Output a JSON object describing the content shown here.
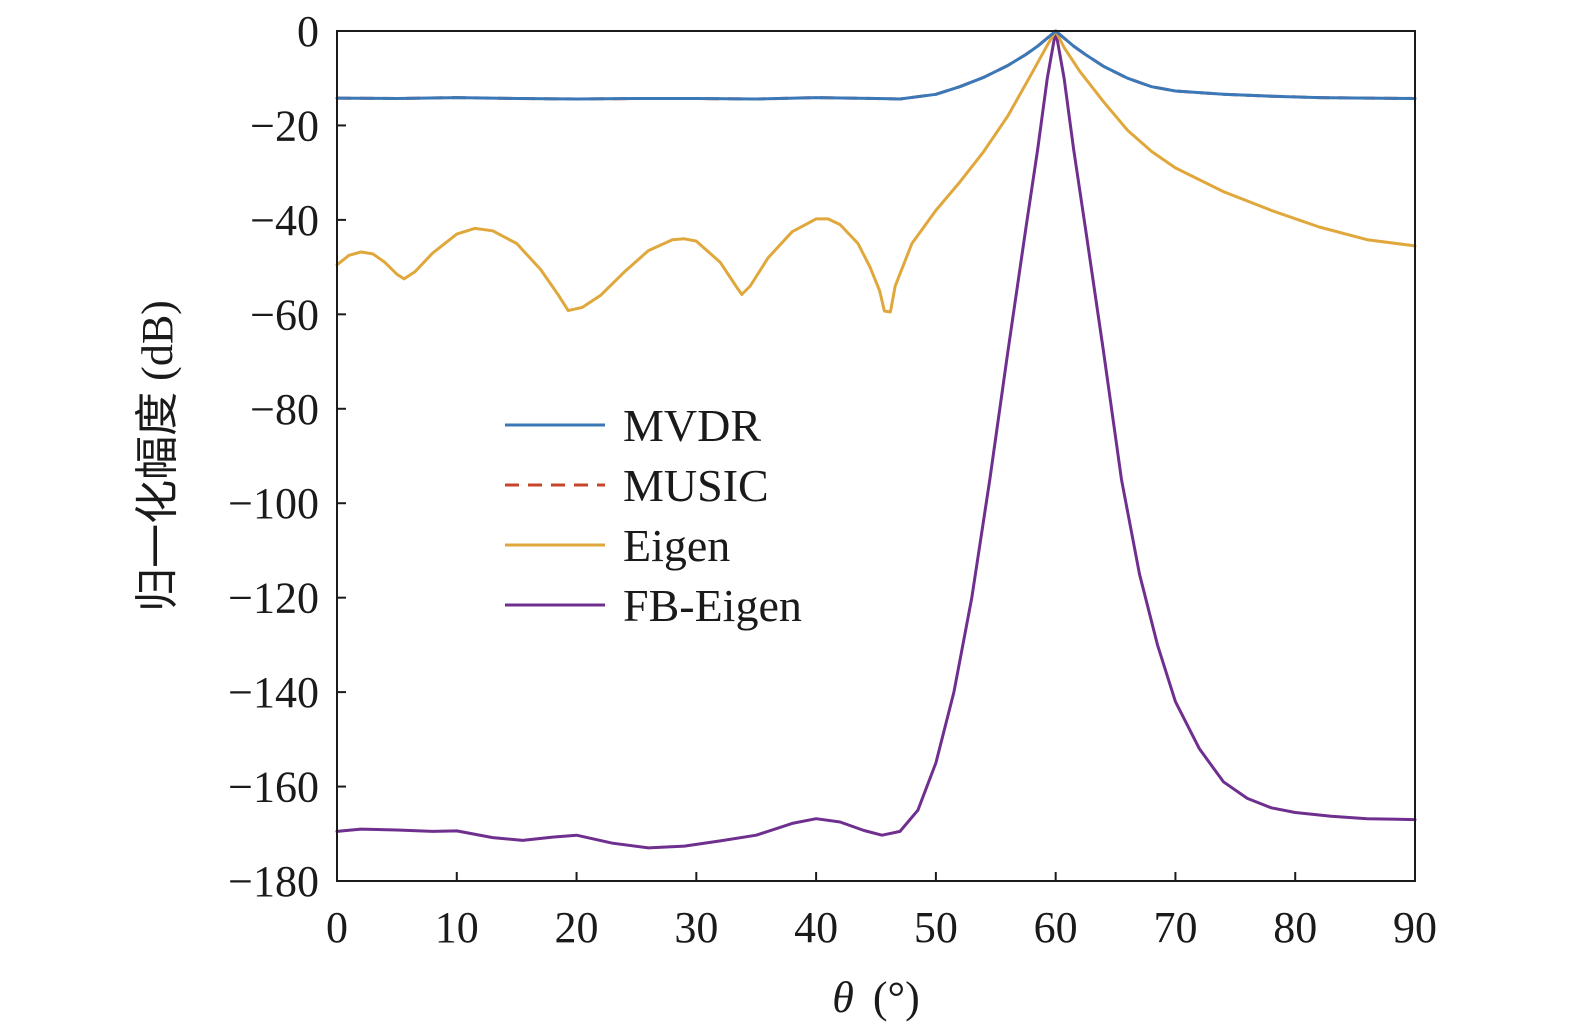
{
  "chart_data": {
    "type": "line",
    "title": "",
    "xlabel_symbol": "θ",
    "xlabel_unit": "(°)",
    "ylabel": "归一化幅度 (dB)",
    "xlim": [
      0,
      90
    ],
    "ylim": [
      -180,
      0
    ],
    "xticks": [
      "0",
      "10",
      "20",
      "30",
      "40",
      "50",
      "60",
      "70",
      "80",
      "90"
    ],
    "yticks": [
      "0",
      "−20",
      "−40",
      "−60",
      "−80",
      "−100",
      "−120",
      "−140",
      "−160",
      "−180"
    ],
    "grid": false,
    "legend_position": "center-left",
    "series": [
      {
        "name": "MVDR",
        "color": "#3b78b8",
        "style": "solid",
        "points": [
          [
            0,
            -14.2
          ],
          [
            5,
            -14.3
          ],
          [
            10,
            -14.1
          ],
          [
            15,
            -14.3
          ],
          [
            20,
            -14.4
          ],
          [
            25,
            -14.3
          ],
          [
            30,
            -14.3
          ],
          [
            35,
            -14.4
          ],
          [
            40,
            -14.1
          ],
          [
            45,
            -14.3
          ],
          [
            47,
            -14.4
          ],
          [
            50,
            -13.4
          ],
          [
            52,
            -11.8
          ],
          [
            54,
            -9.8
          ],
          [
            56,
            -7.3
          ],
          [
            57.5,
            -5.0
          ],
          [
            58.5,
            -3.2
          ],
          [
            59.3,
            -1.5
          ],
          [
            60,
            0
          ],
          [
            60.7,
            -1.5
          ],
          [
            61.5,
            -3.2
          ],
          [
            62.5,
            -5.0
          ],
          [
            64,
            -7.5
          ],
          [
            66,
            -10.0
          ],
          [
            68,
            -11.8
          ],
          [
            70,
            -12.7
          ],
          [
            74,
            -13.4
          ],
          [
            78,
            -13.8
          ],
          [
            82,
            -14.1
          ],
          [
            86,
            -14.2
          ],
          [
            90,
            -14.3
          ]
        ]
      },
      {
        "name": "MUSIC",
        "color": "#c5462a",
        "style": "dashed",
        "points": [
          [
            0,
            -14.2
          ],
          [
            5,
            -14.3
          ],
          [
            10,
            -14.1
          ],
          [
            15,
            -14.3
          ],
          [
            20,
            -14.4
          ],
          [
            25,
            -14.3
          ],
          [
            30,
            -14.3
          ],
          [
            35,
            -14.4
          ],
          [
            40,
            -14.1
          ],
          [
            45,
            -14.3
          ],
          [
            47,
            -14.4
          ],
          [
            50,
            -13.4
          ],
          [
            52,
            -11.8
          ],
          [
            54,
            -9.8
          ],
          [
            56,
            -7.3
          ],
          [
            57.5,
            -5.0
          ],
          [
            58.5,
            -3.2
          ],
          [
            59.3,
            -1.5
          ],
          [
            60,
            0
          ],
          [
            60.7,
            -1.5
          ],
          [
            61.5,
            -3.2
          ],
          [
            62.5,
            -5.0
          ],
          [
            64,
            -7.5
          ],
          [
            66,
            -10.0
          ],
          [
            68,
            -11.8
          ],
          [
            70,
            -12.7
          ],
          [
            74,
            -13.4
          ],
          [
            78,
            -13.8
          ],
          [
            82,
            -14.1
          ],
          [
            86,
            -14.2
          ],
          [
            90,
            -14.3
          ]
        ]
      },
      {
        "name": "Eigen",
        "color": "#e0a83c",
        "style": "solid",
        "points": [
          [
            0,
            -49.5
          ],
          [
            1,
            -47.5
          ],
          [
            2,
            -46.8
          ],
          [
            3,
            -47.2
          ],
          [
            4,
            -49
          ],
          [
            5,
            -51.5
          ],
          [
            5.6,
            -52.5
          ],
          [
            6.5,
            -51
          ],
          [
            8,
            -47
          ],
          [
            10,
            -43
          ],
          [
            11.5,
            -41.8
          ],
          [
            13,
            -42.3
          ],
          [
            15,
            -45
          ],
          [
            17,
            -50.5
          ],
          [
            18.5,
            -56
          ],
          [
            19.3,
            -59.2
          ],
          [
            20.5,
            -58.5
          ],
          [
            22,
            -56
          ],
          [
            24,
            -51
          ],
          [
            26,
            -46.5
          ],
          [
            28,
            -44.2
          ],
          [
            29,
            -44
          ],
          [
            30,
            -44.5
          ],
          [
            32,
            -49
          ],
          [
            33.3,
            -54
          ],
          [
            33.8,
            -55.8
          ],
          [
            34.5,
            -54
          ],
          [
            36,
            -48
          ],
          [
            38,
            -42.5
          ],
          [
            40,
            -39.8
          ],
          [
            41,
            -39.8
          ],
          [
            42,
            -41
          ],
          [
            43.5,
            -45
          ],
          [
            44.5,
            -50
          ],
          [
            45.3,
            -55
          ],
          [
            45.7,
            -59.3
          ],
          [
            46.2,
            -59.5
          ],
          [
            46.6,
            -54
          ],
          [
            48,
            -45
          ],
          [
            50,
            -38
          ],
          [
            52,
            -32
          ],
          [
            54,
            -25.5
          ],
          [
            56,
            -18
          ],
          [
            58,
            -9
          ],
          [
            59.3,
            -3
          ],
          [
            60,
            0
          ],
          [
            60.7,
            -3.5
          ],
          [
            62,
            -8.5
          ],
          [
            64,
            -15
          ],
          [
            66,
            -21
          ],
          [
            68,
            -25.5
          ],
          [
            70,
            -29
          ],
          [
            74,
            -34
          ],
          [
            78,
            -38
          ],
          [
            82,
            -41.5
          ],
          [
            86,
            -44.2
          ],
          [
            90,
            -45.5
          ]
        ]
      },
      {
        "name": "FB-Eigen",
        "color": "#6f2f8e",
        "style": "solid",
        "points": [
          [
            0,
            -169.5
          ],
          [
            2,
            -169
          ],
          [
            5,
            -169.2
          ],
          [
            8,
            -169.5
          ],
          [
            10,
            -169.4
          ],
          [
            13,
            -170.8
          ],
          [
            15.5,
            -171.4
          ],
          [
            18,
            -170.7
          ],
          [
            20,
            -170.3
          ],
          [
            23,
            -172
          ],
          [
            26,
            -173
          ],
          [
            29,
            -172.6
          ],
          [
            32,
            -171.5
          ],
          [
            35,
            -170.3
          ],
          [
            38,
            -167.8
          ],
          [
            40,
            -166.8
          ],
          [
            42,
            -167.5
          ],
          [
            44,
            -169.3
          ],
          [
            45.5,
            -170.3
          ],
          [
            47,
            -169.5
          ],
          [
            48.5,
            -165
          ],
          [
            50,
            -155
          ],
          [
            51.5,
            -140
          ],
          [
            53,
            -120
          ],
          [
            54.5,
            -95
          ],
          [
            56,
            -68
          ],
          [
            57.5,
            -42
          ],
          [
            58.5,
            -25
          ],
          [
            59.3,
            -10
          ],
          [
            60,
            0
          ],
          [
            60.7,
            -10
          ],
          [
            61.5,
            -25
          ],
          [
            62.5,
            -42
          ],
          [
            64,
            -68
          ],
          [
            65.5,
            -95
          ],
          [
            67,
            -115
          ],
          [
            68.5,
            -130
          ],
          [
            70,
            -142
          ],
          [
            72,
            -152
          ],
          [
            74,
            -159
          ],
          [
            76,
            -162.5
          ],
          [
            78,
            -164.5
          ],
          [
            80,
            -165.5
          ],
          [
            83,
            -166.3
          ],
          [
            86,
            -166.8
          ],
          [
            90,
            -167
          ]
        ]
      }
    ]
  }
}
